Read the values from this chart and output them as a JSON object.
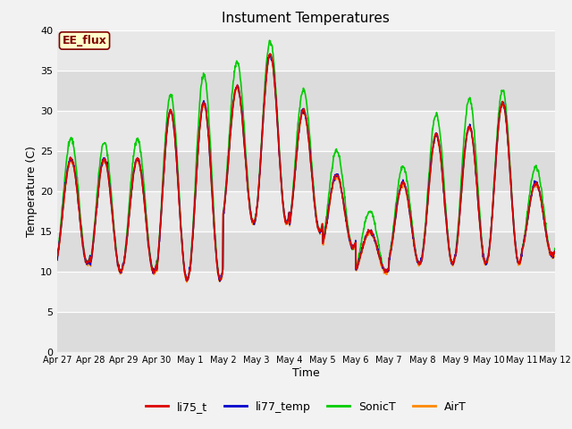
{
  "title": "Instument Temperatures",
  "xlabel": "Time",
  "ylabel": "Temperature (C)",
  "ylim": [
    0,
    40
  ],
  "plot_bg": "#e8e8e8",
  "fig_bg": "#f2f2f2",
  "annotation_text": "EE_flux",
  "annotation_bg": "#ffffcc",
  "annotation_border": "#800000",
  "series_colors": [
    "#dd0000",
    "#0000cc",
    "#00cc00",
    "#ff8800"
  ],
  "series_names": [
    "li75_t",
    "li77_temp",
    "SonicT",
    "AirT"
  ],
  "lw": 1.2,
  "xtick_labels": [
    "Apr 27",
    "Apr 28",
    "Apr 29",
    "Apr 30",
    "May 1",
    "May 2",
    "May 3",
    "May 4",
    "May 5",
    "May 6",
    "May 7",
    "May 8",
    "May 9",
    "May 10",
    "May 11",
    "May 12"
  ],
  "yticks": [
    0,
    5,
    10,
    15,
    20,
    25,
    30,
    35,
    40
  ],
  "peak_temps": [
    24,
    24,
    24,
    30,
    31,
    33,
    37,
    30,
    22,
    15,
    21,
    27,
    28,
    31,
    21
  ],
  "min_temps": [
    11,
    10,
    10,
    9,
    9,
    16,
    16,
    15,
    13,
    10,
    11,
    11,
    11,
    11,
    12
  ],
  "sonic_peak_extra": [
    2.5,
    2.0,
    2.5,
    2.0,
    3.5,
    3.0,
    1.5,
    2.5,
    3.0,
    2.5,
    2.0,
    2.5,
    3.5,
    1.5,
    2.0
  ],
  "n_days": 15,
  "pts_per_day": 96
}
